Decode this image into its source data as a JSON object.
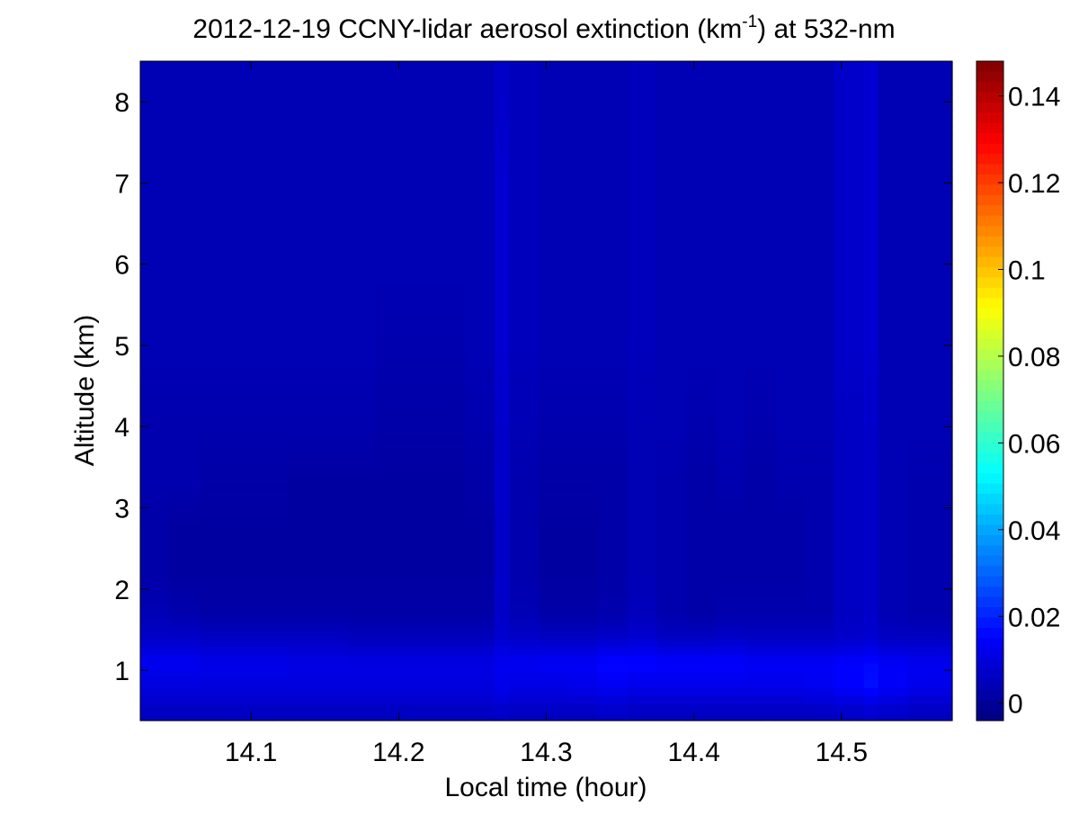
{
  "chart_data": {
    "type": "heatmap",
    "title": "2012-12-19 CCNY-lidar aerosol extinction (km",
    "title_superscript": "-1",
    "title_suffix": ") at 532-nm",
    "xlabel": "Local time (hour)",
    "ylabel": "Altitude (km)",
    "xlim": [
      14.025,
      14.575
    ],
    "ylim": [
      0.38,
      8.5
    ],
    "x_ticks": [
      14.1,
      14.2,
      14.3,
      14.4,
      14.5
    ],
    "x_tick_labels": [
      "14.1",
      "14.2",
      "14.3",
      "14.4",
      "14.5"
    ],
    "y_ticks": [
      1,
      2,
      3,
      4,
      5,
      6,
      7,
      8
    ],
    "y_tick_labels": [
      "1",
      "2",
      "3",
      "4",
      "5",
      "6",
      "7",
      "8"
    ],
    "colorbar": {
      "colormap": "jet",
      "clim": [
        -0.004,
        0.148
      ],
      "ticks": [
        0,
        0.02,
        0.04,
        0.06,
        0.08,
        0.1,
        0.12,
        0.14
      ],
      "tick_labels": [
        "0",
        "0.02",
        "0.04",
        "0.06",
        "0.08",
        "0.1",
        "0.12",
        "0.14"
      ]
    },
    "grid": false,
    "field": {
      "time_columns": [
        14.035,
        14.055,
        14.075,
        14.095,
        14.115,
        14.135,
        14.155,
        14.175,
        14.195,
        14.215,
        14.235,
        14.255,
        14.27,
        14.285,
        14.305,
        14.325,
        14.345,
        14.365,
        14.385,
        14.405,
        14.425,
        14.445,
        14.465,
        14.485,
        14.505,
        14.52,
        14.535,
        14.555,
        14.57
      ],
      "altitudes": [
        0.5,
        0.8,
        1.1,
        1.4,
        1.7,
        2.2,
        2.8,
        3.3,
        4.0,
        5.0,
        6.0,
        7.0,
        8.0,
        8.4
      ],
      "values": [
        [
          0.006,
          0.01,
          0.013,
          0.007,
          0.004,
          0.002,
          0.002,
          0.003,
          0.003,
          0.004,
          0.004,
          0.004,
          0.004,
          0.004
        ],
        [
          0.006,
          0.01,
          0.013,
          0.007,
          0.003,
          0.001,
          0.001,
          0.003,
          0.003,
          0.004,
          0.004,
          0.004,
          0.004,
          0.004
        ],
        [
          0.006,
          0.01,
          0.012,
          0.006,
          0.002,
          0.001,
          0.001,
          0.002,
          0.003,
          0.004,
          0.004,
          0.004,
          0.004,
          0.004
        ],
        [
          0.006,
          0.01,
          0.012,
          0.006,
          0.002,
          0.001,
          0.001,
          0.002,
          0.003,
          0.004,
          0.004,
          0.004,
          0.004,
          0.004
        ],
        [
          0.006,
          0.01,
          0.012,
          0.006,
          0.002,
          0.001,
          0.001,
          0.002,
          0.003,
          0.004,
          0.004,
          0.004,
          0.004,
          0.004
        ],
        [
          0.006,
          0.01,
          0.011,
          0.006,
          0.002,
          0.001,
          0.001,
          0.001,
          0.003,
          0.004,
          0.004,
          0.004,
          0.004,
          0.004
        ],
        [
          0.006,
          0.01,
          0.011,
          0.006,
          0.002,
          0.001,
          0.001,
          0.001,
          0.003,
          0.004,
          0.004,
          0.004,
          0.004,
          0.004
        ],
        [
          0.006,
          0.01,
          0.011,
          0.005,
          0.002,
          0.001,
          0.001,
          0.001,
          0.003,
          0.004,
          0.004,
          0.004,
          0.004,
          0.004
        ],
        [
          0.006,
          0.01,
          0.011,
          0.005,
          0.002,
          0.001,
          0.001,
          0.001,
          0.002,
          0.003,
          0.004,
          0.004,
          0.004,
          0.004
        ],
        [
          0.006,
          0.01,
          0.011,
          0.005,
          0.002,
          0.001,
          0.001,
          0.001,
          0.002,
          0.003,
          0.004,
          0.004,
          0.004,
          0.004
        ],
        [
          0.006,
          0.01,
          0.011,
          0.005,
          0.002,
          0.001,
          0.001,
          0.001,
          0.002,
          0.003,
          0.004,
          0.004,
          0.004,
          0.004
        ],
        [
          0.006,
          0.01,
          0.011,
          0.005,
          0.002,
          0.001,
          0.001,
          0.002,
          0.003,
          0.004,
          0.004,
          0.004,
          0.004,
          0.004
        ],
        [
          0.007,
          0.012,
          0.013,
          0.008,
          0.007,
          0.007,
          0.007,
          0.007,
          0.007,
          0.008,
          0.008,
          0.008,
          0.007,
          0.007
        ],
        [
          0.006,
          0.011,
          0.013,
          0.007,
          0.004,
          0.003,
          0.003,
          0.003,
          0.004,
          0.005,
          0.005,
          0.005,
          0.005,
          0.005
        ],
        [
          0.006,
          0.011,
          0.014,
          0.006,
          0.002,
          0.001,
          0.001,
          0.002,
          0.003,
          0.004,
          0.004,
          0.004,
          0.004,
          0.004
        ],
        [
          0.006,
          0.012,
          0.014,
          0.006,
          0.002,
          0.001,
          0.001,
          0.002,
          0.003,
          0.004,
          0.004,
          0.004,
          0.004,
          0.004
        ],
        [
          0.007,
          0.013,
          0.016,
          0.007,
          0.003,
          0.002,
          0.002,
          0.002,
          0.003,
          0.004,
          0.004,
          0.004,
          0.004,
          0.004
        ],
        [
          0.006,
          0.012,
          0.016,
          0.008,
          0.005,
          0.004,
          0.004,
          0.004,
          0.004,
          0.005,
          0.005,
          0.005,
          0.005,
          0.005
        ],
        [
          0.006,
          0.012,
          0.015,
          0.006,
          0.003,
          0.003,
          0.003,
          0.003,
          0.004,
          0.004,
          0.004,
          0.004,
          0.004,
          0.004
        ],
        [
          0.006,
          0.012,
          0.015,
          0.006,
          0.002,
          0.002,
          0.002,
          0.002,
          0.003,
          0.004,
          0.004,
          0.004,
          0.004,
          0.004
        ],
        [
          0.006,
          0.012,
          0.015,
          0.007,
          0.003,
          0.002,
          0.002,
          0.003,
          0.004,
          0.004,
          0.004,
          0.004,
          0.004,
          0.004
        ],
        [
          0.006,
          0.012,
          0.014,
          0.006,
          0.003,
          0.002,
          0.002,
          0.002,
          0.003,
          0.004,
          0.004,
          0.004,
          0.004,
          0.004
        ],
        [
          0.006,
          0.012,
          0.014,
          0.006,
          0.003,
          0.002,
          0.002,
          0.003,
          0.004,
          0.004,
          0.004,
          0.004,
          0.004,
          0.004
        ],
        [
          0.006,
          0.013,
          0.014,
          0.006,
          0.003,
          0.003,
          0.003,
          0.003,
          0.004,
          0.004,
          0.004,
          0.004,
          0.004,
          0.004
        ],
        [
          0.007,
          0.015,
          0.015,
          0.007,
          0.006,
          0.006,
          0.006,
          0.006,
          0.006,
          0.007,
          0.007,
          0.007,
          0.007,
          0.007
        ],
        [
          0.008,
          0.017,
          0.016,
          0.008,
          0.007,
          0.007,
          0.007,
          0.007,
          0.007,
          0.008,
          0.008,
          0.008,
          0.008,
          0.008
        ],
        [
          0.007,
          0.014,
          0.014,
          0.006,
          0.004,
          0.004,
          0.004,
          0.004,
          0.004,
          0.004,
          0.004,
          0.004,
          0.004,
          0.004
        ],
        [
          0.006,
          0.012,
          0.013,
          0.006,
          0.003,
          0.003,
          0.003,
          0.003,
          0.004,
          0.004,
          0.004,
          0.004,
          0.004,
          0.004
        ],
        [
          0.006,
          0.012,
          0.013,
          0.006,
          0.003,
          0.003,
          0.003,
          0.003,
          0.004,
          0.004,
          0.004,
          0.004,
          0.004,
          0.004
        ]
      ]
    }
  }
}
